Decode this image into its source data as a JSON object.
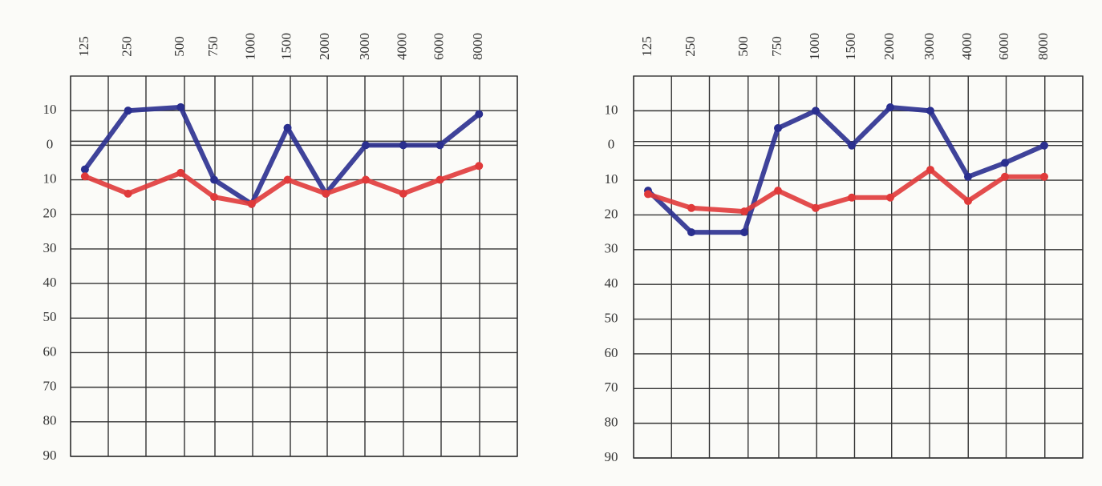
{
  "chart_data": [
    {
      "type": "line",
      "categories": [
        "125",
        "250",
        "500",
        "750",
        "1000",
        "1500",
        "2000",
        "3000",
        "4000",
        "6000",
        "8000"
      ],
      "ylim": [
        -20,
        90
      ],
      "y_inverted": true,
      "yticks": [
        {
          "value": -10,
          "label": "10"
        },
        0,
        10,
        20,
        30,
        40,
        50,
        60,
        70,
        80,
        90
      ],
      "grid": true,
      "series": [
        {
          "color": "#2a2f8f",
          "values": [
            7,
            -10,
            -11,
            10,
            17,
            -5,
            14,
            0,
            0,
            0,
            -9
          ]
        },
        {
          "color": "#e03a3a",
          "values": [
            9,
            14,
            8,
            15,
            17,
            10,
            14,
            10,
            14,
            10,
            6
          ]
        }
      ]
    },
    {
      "type": "line",
      "categories": [
        "125",
        "250",
        "500",
        "750",
        "1000",
        "1500",
        "2000",
        "3000",
        "4000",
        "6000",
        "8000"
      ],
      "ylim": [
        -20,
        90
      ],
      "y_inverted": true,
      "yticks": [
        {
          "value": -10,
          "label": "10"
        },
        0,
        10,
        20,
        30,
        40,
        50,
        60,
        70,
        80,
        90
      ],
      "grid": true,
      "series": [
        {
          "color": "#2a2f8f",
          "values": [
            13,
            25,
            25,
            -5,
            -10,
            0,
            -11,
            -10,
            9,
            5,
            0
          ]
        },
        {
          "color": "#e03a3a",
          "values": [
            14,
            18,
            19,
            13,
            18,
            15,
            15,
            7,
            16,
            9,
            9
          ]
        }
      ]
    }
  ]
}
